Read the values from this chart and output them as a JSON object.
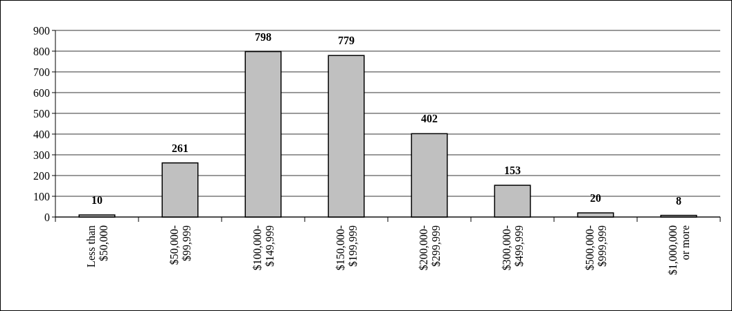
{
  "chart_data": {
    "type": "bar",
    "categories": [
      "Less than $50,000",
      "$50,000-$99,999",
      "$100,000-$149,999",
      "$150,000-$199,999",
      "$200,000-$299,999",
      "$300,000-$499,999",
      "$500,000-$999,999",
      "$1,000,000 or more"
    ],
    "values": [
      10,
      261,
      798,
      779,
      402,
      153,
      20,
      8
    ],
    "color": "#c0c0c0",
    "ylim": [
      0,
      900
    ],
    "yticks": [
      0,
      100,
      200,
      300,
      400,
      500,
      600,
      700,
      800,
      900
    ],
    "grid": "y",
    "data_labels": true
  }
}
